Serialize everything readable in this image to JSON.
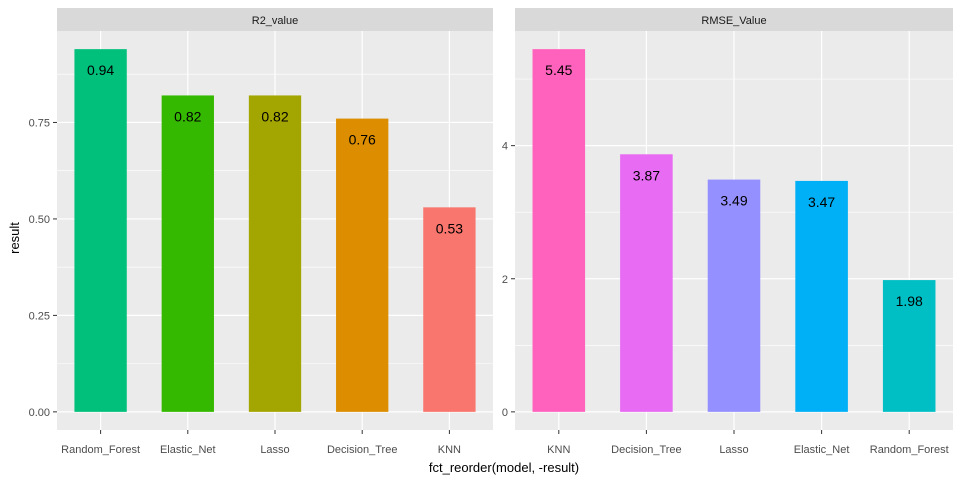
{
  "chart_data": {
    "type": "bar",
    "xlabel": "fct_reorder(model, -result)",
    "ylabel": "result",
    "facets": [
      {
        "strip": "R2_value",
        "categories": [
          "Random_Forest",
          "Elastic_Net",
          "Lasso",
          "Decision_Tree",
          "KNN"
        ],
        "values": [
          0.94,
          0.82,
          0.82,
          0.76,
          0.53
        ],
        "value_labels": [
          "0.94",
          "0.82",
          "0.82",
          "0.76",
          "0.53"
        ],
        "ylim": [
          -0.047,
          0.987
        ],
        "yticks": [
          0,
          0.25,
          0.5,
          0.75
        ],
        "ytick_labels": [
          "0.00",
          "0.25",
          "0.50",
          "0.75"
        ]
      },
      {
        "strip": "RMSE_Value",
        "categories": [
          "KNN",
          "Decision_Tree",
          "Lasso",
          "Elastic_Net",
          "Random_Forest"
        ],
        "values": [
          5.45,
          3.87,
          3.49,
          3.47,
          1.98
        ],
        "value_labels": [
          "5.45",
          "3.87",
          "3.49",
          "3.47",
          "1.98"
        ],
        "ylim": [
          -0.2725,
          5.7225
        ],
        "yticks": [
          0,
          2,
          4
        ],
        "ytick_labels": [
          "0",
          "2",
          "4"
        ]
      }
    ],
    "colors": {
      "Random_Forest": "#00c07b",
      "Elastic_Net": "#35b900",
      "Lasso": "#a3a500",
      "Decision_Tree": "#dc8e00",
      "KNN": "#f8766d"
    },
    "colors_rmse": {
      "KNN": "#ff62bc",
      "Decision_Tree": "#e76bf3",
      "Lasso": "#9590ff",
      "Elastic_Net": "#00b0f6",
      "Random_Forest": "#00bfc4"
    },
    "panel_background": "#ebebeb",
    "strip_background": "#d9d9d9",
    "grid": true,
    "legend": "none"
  }
}
